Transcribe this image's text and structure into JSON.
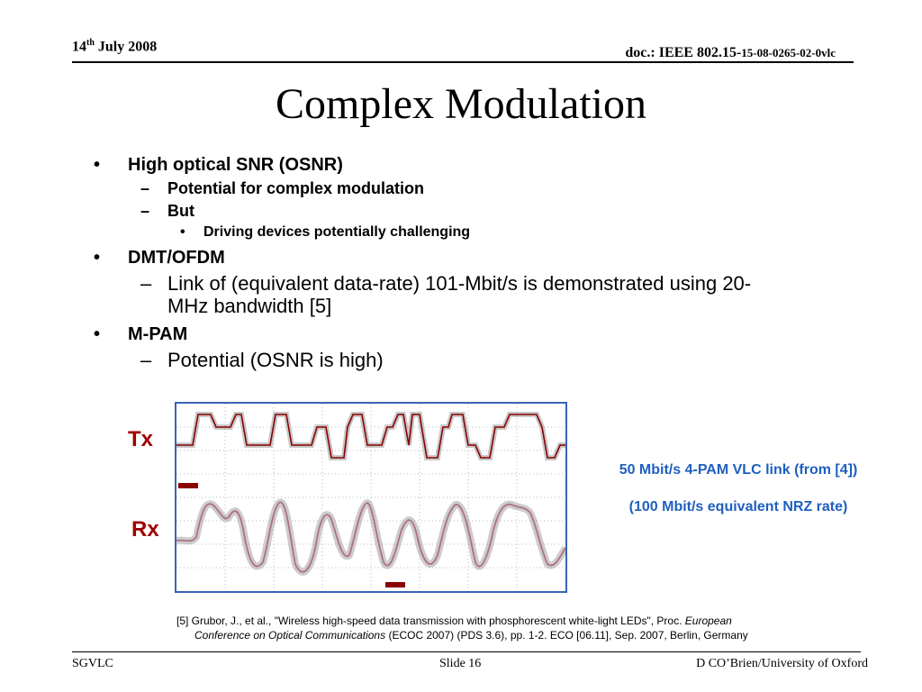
{
  "header": {
    "date_day": "14",
    "date_sup": "th",
    "date_rest": " July 2008",
    "doc_main": "doc.: IEEE 802.15-",
    "doc_small": "15-08-0265-02-0vlc"
  },
  "title": "Complex Modulation",
  "bullets": {
    "b1": "High optical SNR (OSNR)",
    "b1_s1": "Potential for complex modulation",
    "b1_s2": "But",
    "b1_s2_t1": "Driving devices potentially challenging",
    "b2": "DMT/OFDM",
    "b2_s1": "Link of (equivalent data-rate) 101-Mbit/s is demonstrated using 20-MHz bandwidth [5]",
    "b3": "M-PAM",
    "b3_s1": "Potential (OSNR is high)",
    "bullet_glyph": "•",
    "dash_glyph": "–"
  },
  "figure": {
    "tx_label": "Tx",
    "rx_label": "Rx",
    "caption1": "50 Mbit/s 4-PAM VLC link (from [4])",
    "caption2": "(100 Mbit/s equivalent NRZ rate)",
    "border_color": "#3a63b8",
    "trace_color": "#8b0000",
    "rx_trace_color": "#b07080",
    "label_color": "#a00000",
    "caption_color": "#1f5fbf"
  },
  "reference": {
    "line1_plain": "[5] Grubor, J., et al., \"Wireless high-speed data transmission with phosphorescent white-light LEDs\", Proc. ",
    "line1_italic": "European",
    "line2_italic": "Conference on Optical Communications",
    "line2_plain": " (ECOC 2007) (PDS 3.6), pp. 1-2. ECO [06.11], Sep. 2007, Berlin, Germany"
  },
  "footer": {
    "left": "SGVLC",
    "center": "Slide 16",
    "right": "D CO’Brien/University of Oxford"
  }
}
